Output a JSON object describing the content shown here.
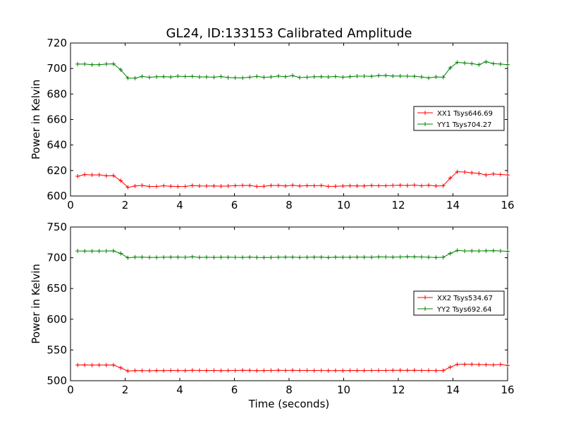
{
  "figure": {
    "title": "GL24, ID:133153 Calibrated Amplitude",
    "xlabel": "Time (seconds)"
  },
  "chart_data": [
    {
      "type": "line",
      "title": "GL24, ID:133153 Calibrated Amplitude",
      "xlabel": "",
      "ylabel": "Power in Kelvin",
      "xlim": [
        0,
        16
      ],
      "ylim": [
        600,
        720
      ],
      "xticks": [
        0,
        2,
        4,
        6,
        8,
        10,
        12,
        14,
        16
      ],
      "yticks": [
        600,
        620,
        640,
        660,
        680,
        700,
        720
      ],
      "grid": false,
      "legend_position": "center-right",
      "marker": "plus",
      "x": [
        0.26,
        0.52,
        0.79,
        1.05,
        1.31,
        1.57,
        1.84,
        2.1,
        2.36,
        2.62,
        2.89,
        3.15,
        3.41,
        3.67,
        3.93,
        4.2,
        4.46,
        4.72,
        4.98,
        5.25,
        5.51,
        5.77,
        6.03,
        6.3,
        6.56,
        6.82,
        7.08,
        7.34,
        7.61,
        7.87,
        8.13,
        8.39,
        8.66,
        8.92,
        9.18,
        9.44,
        9.7,
        9.97,
        10.23,
        10.49,
        10.75,
        11.02,
        11.28,
        11.54,
        11.8,
        12.07,
        12.33,
        12.59,
        12.85,
        13.11,
        13.38,
        13.64,
        13.9,
        14.16,
        14.43,
        14.69,
        14.95,
        15.21,
        15.48,
        15.74,
        16.0
      ],
      "series": [
        {
          "name": "XX1 Tsys646.69",
          "color": "#ff0000",
          "values": [
            615.5,
            616.8,
            616.5,
            616.6,
            615.8,
            616.0,
            612.0,
            606.8,
            607.8,
            608.3,
            607.5,
            607.5,
            608.0,
            607.6,
            607.4,
            607.5,
            608.2,
            607.9,
            607.8,
            607.9,
            607.7,
            607.8,
            608.1,
            608.3,
            608.2,
            607.5,
            607.6,
            608.2,
            608.2,
            607.9,
            608.4,
            607.8,
            608.1,
            608.0,
            608.2,
            607.5,
            607.6,
            607.8,
            608.0,
            607.9,
            607.9,
            608.2,
            608.0,
            608.0,
            608.3,
            608.4,
            608.2,
            608.6,
            608.0,
            608.4,
            607.9,
            608.0,
            614.0,
            619.0,
            618.8,
            618.2,
            617.7,
            616.5,
            617.3,
            616.9,
            616.5
          ]
        },
        {
          "name": "YY1 Tsys704.27",
          "color": "#008000",
          "values": [
            703.5,
            703.5,
            703.0,
            703.0,
            703.5,
            703.6,
            699.0,
            692.5,
            692.4,
            693.8,
            693.1,
            693.5,
            693.6,
            693.3,
            694.0,
            693.7,
            693.8,
            693.4,
            693.4,
            693.2,
            693.7,
            692.9,
            692.7,
            692.6,
            693.2,
            693.8,
            693.1,
            693.4,
            694.1,
            693.6,
            694.4,
            692.9,
            693.2,
            693.5,
            693.6,
            693.4,
            693.7,
            693.2,
            693.6,
            694.0,
            694.0,
            693.9,
            694.4,
            694.5,
            694.1,
            694.1,
            694.0,
            693.9,
            693.4,
            692.6,
            693.4,
            693.2,
            700.5,
            704.8,
            704.3,
            703.8,
            703.0,
            705.3,
            703.8,
            703.5,
            703.0
          ]
        }
      ]
    },
    {
      "type": "line",
      "title": "",
      "xlabel": "Time (seconds)",
      "ylabel": "Power in Kelvin",
      "xlim": [
        0,
        16
      ],
      "ylim": [
        500,
        750
      ],
      "xticks": [
        0,
        2,
        4,
        6,
        8,
        10,
        12,
        14,
        16
      ],
      "yticks": [
        500,
        550,
        600,
        650,
        700,
        750
      ],
      "grid": false,
      "legend_position": "center-right",
      "marker": "plus",
      "x": [
        0.26,
        0.52,
        0.79,
        1.05,
        1.31,
        1.57,
        1.84,
        2.1,
        2.36,
        2.62,
        2.89,
        3.15,
        3.41,
        3.67,
        3.93,
        4.2,
        4.46,
        4.72,
        4.98,
        5.25,
        5.51,
        5.77,
        6.03,
        6.3,
        6.56,
        6.82,
        7.08,
        7.34,
        7.61,
        7.87,
        8.13,
        8.39,
        8.66,
        8.92,
        9.18,
        9.44,
        9.7,
        9.97,
        10.23,
        10.49,
        10.75,
        11.02,
        11.28,
        11.54,
        11.8,
        12.07,
        12.33,
        12.59,
        12.85,
        13.11,
        13.38,
        13.64,
        13.9,
        14.16,
        14.43,
        14.69,
        14.95,
        15.21,
        15.48,
        15.74,
        16.0
      ],
      "series": [
        {
          "name": "XX2 Tsys534.67",
          "color": "#ff0000",
          "values": [
            525.5,
            525.6,
            525.4,
            525.5,
            525.4,
            525.5,
            521.0,
            515.8,
            516.5,
            516.4,
            516.2,
            516.5,
            516.4,
            516.6,
            516.5,
            516.4,
            516.9,
            516.6,
            516.5,
            516.6,
            516.4,
            516.5,
            516.7,
            516.9,
            516.8,
            516.4,
            516.5,
            516.6,
            516.9,
            516.7,
            516.9,
            516.6,
            516.6,
            516.5,
            516.7,
            516.4,
            516.5,
            516.4,
            516.6,
            516.5,
            516.5,
            516.7,
            516.6,
            516.7,
            516.9,
            516.9,
            516.8,
            516.9,
            516.7,
            516.6,
            516.5,
            516.5,
            522.0,
            526.5,
            526.8,
            526.6,
            526.3,
            526.0,
            525.7,
            526.4,
            524.8
          ]
        },
        {
          "name": "YY2 Tsys692.64",
          "color": "#008000",
          "values": [
            711.0,
            710.8,
            710.9,
            710.9,
            711.0,
            711.1,
            707.0,
            700.0,
            701.0,
            701.0,
            700.6,
            700.6,
            700.8,
            701.0,
            701.0,
            700.7,
            701.5,
            700.6,
            700.8,
            700.6,
            700.9,
            700.8,
            700.7,
            700.6,
            701.0,
            700.5,
            700.4,
            700.6,
            700.9,
            701.0,
            701.0,
            700.6,
            700.8,
            701.0,
            701.0,
            700.4,
            701.0,
            700.9,
            700.9,
            701.0,
            701.0,
            700.9,
            701.4,
            701.2,
            701.0,
            701.2,
            701.7,
            701.6,
            701.2,
            700.8,
            700.4,
            700.8,
            707.0,
            711.8,
            711.0,
            711.2,
            711.0,
            711.3,
            711.4,
            711.0,
            710.4
          ]
        }
      ]
    }
  ]
}
